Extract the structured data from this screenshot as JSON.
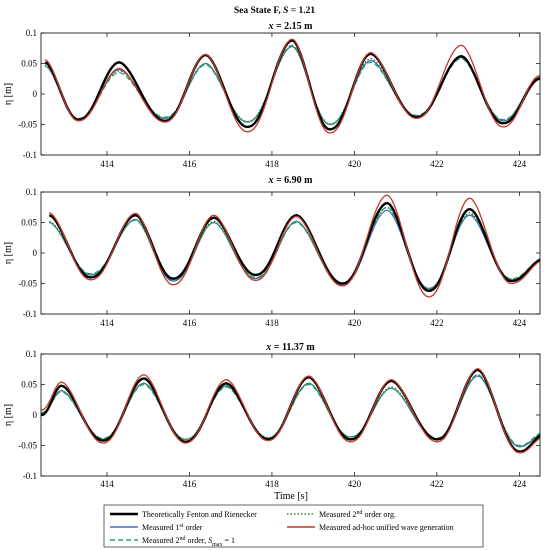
{
  "figure": {
    "title_prefix": "Sea State F, ",
    "title_var": "S",
    "title_suffix": " = 1.21",
    "x_axis_label": "Time [s]",
    "y_axis_label": "η [m]",
    "legend": {
      "fenton": "Theoretically Fenton and Rienecker",
      "first_order_pre": "Measured 1",
      "first_order_sup": "st",
      "first_order_post": " order",
      "second_smax_pre": "Measured 2",
      "second_smax_sup": "nd",
      "second_smax_mid": " order, ",
      "second_smax_var": "S",
      "second_smax_sub": "max",
      "second_smax_post": " = 1",
      "second_org_pre": "Measured 2",
      "second_org_sup": "nd",
      "second_org_post": " order org.",
      "adhoc": "Measured ad-hoc unified wave generation"
    }
  },
  "colors": {
    "fenton": "#000000",
    "first_order": "#4472c4",
    "second_smax": "#2e9e6e",
    "second_org": "#2e8b2e",
    "adhoc": "#c0392b"
  },
  "chart_data": [
    {
      "type": "line",
      "title_var": "x",
      "title_value": " = 2.15 m",
      "xlim": [
        412.4,
        424.5
      ],
      "ylim": [
        -0.1,
        0.1
      ],
      "xticks": [
        414,
        416,
        418,
        420,
        422,
        424
      ],
      "yticks": [
        -0.1,
        -0.05,
        0,
        0.05,
        0.1
      ],
      "ytick_labels": [
        "-0.1",
        "-0.05",
        "0",
        "0.05",
        "0.1"
      ],
      "series": [
        {
          "key": "fenton",
          "crests": [
            [
              412.5,
              0.052
            ],
            [
              414.3,
              0.052
            ],
            [
              416.4,
              0.064
            ],
            [
              418.5,
              0.088
            ],
            [
              420.4,
              0.066
            ],
            [
              422.6,
              0.062
            ],
            [
              424.5,
              0.025
            ]
          ],
          "troughs": [
            [
              413.3,
              -0.042
            ],
            [
              415.4,
              -0.044
            ],
            [
              417.4,
              -0.054
            ],
            [
              419.4,
              -0.058
            ],
            [
              421.5,
              -0.038
            ],
            [
              423.6,
              -0.048
            ]
          ]
        },
        {
          "key": "first_order",
          "crests": [
            [
              412.5,
              0.046
            ],
            [
              414.3,
              0.04
            ],
            [
              416.4,
              0.05
            ],
            [
              418.5,
              0.078
            ],
            [
              420.4,
              0.055
            ],
            [
              422.6,
              0.06
            ],
            [
              424.5,
              0.028
            ]
          ],
          "troughs": [
            [
              413.3,
              -0.042
            ],
            [
              415.4,
              -0.04
            ],
            [
              417.4,
              -0.046
            ],
            [
              419.4,
              -0.05
            ],
            [
              421.5,
              -0.037
            ],
            [
              423.6,
              -0.044
            ]
          ]
        },
        {
          "key": "second_smax",
          "crests": [
            [
              412.5,
              0.046
            ],
            [
              414.3,
              0.035
            ],
            [
              416.4,
              0.048
            ],
            [
              418.5,
              0.08
            ],
            [
              420.4,
              0.052
            ],
            [
              422.6,
              0.058
            ],
            [
              424.5,
              0.026
            ]
          ],
          "troughs": [
            [
              413.3,
              -0.04
            ],
            [
              415.4,
              -0.038
            ],
            [
              417.4,
              -0.046
            ],
            [
              419.4,
              -0.05
            ],
            [
              421.5,
              -0.035
            ],
            [
              423.6,
              -0.042
            ]
          ]
        },
        {
          "key": "second_org",
          "crests": [
            [
              412.5,
              0.048
            ],
            [
              414.3,
              0.038
            ],
            [
              416.4,
              0.05
            ],
            [
              418.5,
              0.078
            ],
            [
              420.4,
              0.058
            ],
            [
              422.6,
              0.06
            ],
            [
              424.5,
              0.027
            ]
          ],
          "troughs": [
            [
              413.3,
              -0.041
            ],
            [
              415.4,
              -0.039
            ],
            [
              417.4,
              -0.045
            ],
            [
              419.4,
              -0.049
            ],
            [
              421.5,
              -0.036
            ],
            [
              423.6,
              -0.043
            ]
          ]
        },
        {
          "key": "adhoc",
          "crests": [
            [
              412.5,
              0.056
            ],
            [
              414.3,
              0.042
            ],
            [
              416.4,
              0.065
            ],
            [
              418.5,
              0.09
            ],
            [
              420.4,
              0.068
            ],
            [
              422.6,
              0.08
            ],
            [
              424.5,
              0.03
            ]
          ],
          "troughs": [
            [
              413.3,
              -0.044
            ],
            [
              415.4,
              -0.046
            ],
            [
              417.4,
              -0.062
            ],
            [
              419.4,
              -0.064
            ],
            [
              421.5,
              -0.04
            ],
            [
              423.6,
              -0.054
            ]
          ]
        }
      ]
    },
    {
      "type": "line",
      "title_var": "x",
      "title_value": " = 6.90 m",
      "xlim": [
        412.4,
        424.5
      ],
      "ylim": [
        -0.1,
        0.1
      ],
      "xticks": [
        414,
        416,
        418,
        420,
        422,
        424
      ],
      "yticks": [
        -0.1,
        -0.05,
        0,
        0.05,
        0.1
      ],
      "ytick_labels": [
        "-0.1",
        "-0.05",
        "0",
        "0.05",
        "0.1"
      ],
      "series": [
        {
          "key": "fenton",
          "crests": [
            [
              412.6,
              0.062
            ],
            [
              414.7,
              0.062
            ],
            [
              416.6,
              0.058
            ],
            [
              418.6,
              0.062
            ],
            [
              420.8,
              0.082
            ],
            [
              422.8,
              0.072
            ]
          ],
          "troughs": [
            [
              413.6,
              -0.04
            ],
            [
              415.6,
              -0.042
            ],
            [
              417.6,
              -0.036
            ],
            [
              419.7,
              -0.05
            ],
            [
              421.8,
              -0.062
            ],
            [
              423.8,
              -0.046
            ],
            [
              424.6,
              -0.01
            ]
          ]
        },
        {
          "key": "first_order",
          "crests": [
            [
              412.6,
              0.05
            ],
            [
              414.7,
              0.055
            ],
            [
              416.6,
              0.05
            ],
            [
              418.6,
              0.052
            ],
            [
              420.8,
              0.07
            ],
            [
              422.8,
              0.062
            ]
          ],
          "troughs": [
            [
              413.6,
              -0.036
            ],
            [
              415.6,
              -0.046
            ],
            [
              417.6,
              -0.042
            ],
            [
              419.7,
              -0.052
            ],
            [
              421.8,
              -0.058
            ],
            [
              423.8,
              -0.044
            ],
            [
              424.6,
              -0.008
            ]
          ]
        },
        {
          "key": "second_smax",
          "crests": [
            [
              412.6,
              0.05
            ],
            [
              414.7,
              0.054
            ],
            [
              416.6,
              0.05
            ],
            [
              418.6,
              0.05
            ],
            [
              420.8,
              0.075
            ],
            [
              422.8,
              0.064
            ]
          ],
          "troughs": [
            [
              413.6,
              -0.034
            ],
            [
              415.6,
              -0.044
            ],
            [
              417.6,
              -0.04
            ],
            [
              419.7,
              -0.05
            ],
            [
              421.8,
              -0.06
            ],
            [
              423.8,
              -0.042
            ],
            [
              424.6,
              -0.008
            ]
          ]
        },
        {
          "key": "second_org",
          "crests": [
            [
              412.6,
              0.052
            ],
            [
              414.7,
              0.055
            ],
            [
              416.6,
              0.052
            ],
            [
              418.6,
              0.052
            ],
            [
              420.8,
              0.075
            ],
            [
              422.8,
              0.066
            ]
          ],
          "troughs": [
            [
              413.6,
              -0.035
            ],
            [
              415.6,
              -0.044
            ],
            [
              417.6,
              -0.041
            ],
            [
              419.7,
              -0.051
            ],
            [
              421.8,
              -0.059
            ],
            [
              423.8,
              -0.043
            ],
            [
              424.6,
              -0.009
            ]
          ]
        },
        {
          "key": "adhoc",
          "crests": [
            [
              412.6,
              0.066
            ],
            [
              414.7,
              0.065
            ],
            [
              416.6,
              0.062
            ],
            [
              418.6,
              0.06
            ],
            [
              420.8,
              0.095
            ],
            [
              422.8,
              0.09
            ]
          ],
          "troughs": [
            [
              413.6,
              -0.044
            ],
            [
              415.6,
              -0.052
            ],
            [
              417.6,
              -0.045
            ],
            [
              419.7,
              -0.054
            ],
            [
              421.8,
              -0.072
            ],
            [
              423.8,
              -0.05
            ],
            [
              424.6,
              -0.012
            ]
          ]
        }
      ]
    },
    {
      "type": "line",
      "title_var": "x",
      "title_value": " = 11.37 m",
      "xlim": [
        412.4,
        424.5
      ],
      "ylim": [
        -0.1,
        0.1
      ],
      "xticks": [
        414,
        416,
        418,
        420,
        422,
        424
      ],
      "yticks": [
        -0.1,
        -0.05,
        0,
        0.05,
        0.1
      ],
      "ytick_labels": [
        "-0.1",
        "-0.05",
        "0",
        "0.05",
        "0.1"
      ],
      "series": [
        {
          "key": "fenton",
          "crests": [
            [
              412.9,
              0.048
            ],
            [
              414.9,
              0.06
            ],
            [
              416.9,
              0.052
            ],
            [
              418.9,
              0.062
            ],
            [
              420.9,
              0.056
            ],
            [
              423.0,
              0.074
            ]
          ],
          "troughs": [
            [
              412.4,
              0.0
            ],
            [
              413.9,
              -0.042
            ],
            [
              415.9,
              -0.044
            ],
            [
              417.9,
              -0.04
            ],
            [
              419.9,
              -0.04
            ],
            [
              422.0,
              -0.04
            ],
            [
              424.0,
              -0.06
            ],
            [
              424.6,
              -0.032
            ]
          ]
        },
        {
          "key": "first_order",
          "crests": [
            [
              412.9,
              0.04
            ],
            [
              414.9,
              0.052
            ],
            [
              416.9,
              0.048
            ],
            [
              418.9,
              0.052
            ],
            [
              420.9,
              0.044
            ],
            [
              423.0,
              0.064
            ]
          ],
          "troughs": [
            [
              412.4,
              0.002
            ],
            [
              413.9,
              -0.04
            ],
            [
              415.9,
              -0.04
            ],
            [
              417.9,
              -0.038
            ],
            [
              419.9,
              -0.036
            ],
            [
              422.0,
              -0.04
            ],
            [
              424.0,
              -0.052
            ],
            [
              424.6,
              -0.03
            ]
          ]
        },
        {
          "key": "second_smax",
          "crests": [
            [
              412.9,
              0.038
            ],
            [
              414.9,
              0.05
            ],
            [
              416.9,
              0.046
            ],
            [
              418.9,
              0.05
            ],
            [
              420.9,
              0.044
            ],
            [
              423.0,
              0.066
            ]
          ],
          "troughs": [
            [
              412.4,
              0.004
            ],
            [
              413.9,
              -0.038
            ],
            [
              415.9,
              -0.04
            ],
            [
              417.9,
              -0.038
            ],
            [
              419.9,
              -0.036
            ],
            [
              422.0,
              -0.038
            ],
            [
              424.0,
              -0.05
            ],
            [
              424.6,
              -0.028
            ]
          ]
        },
        {
          "key": "second_org",
          "crests": [
            [
              412.9,
              0.04
            ],
            [
              414.9,
              0.052
            ],
            [
              416.9,
              0.048
            ],
            [
              418.9,
              0.052
            ],
            [
              420.9,
              0.046
            ],
            [
              423.0,
              0.066
            ]
          ],
          "troughs": [
            [
              412.4,
              0.003
            ],
            [
              413.9,
              -0.039
            ],
            [
              415.9,
              -0.04
            ],
            [
              417.9,
              -0.037
            ],
            [
              419.9,
              -0.036
            ],
            [
              422.0,
              -0.039
            ],
            [
              424.0,
              -0.051
            ],
            [
              424.6,
              -0.029
            ]
          ]
        },
        {
          "key": "adhoc",
          "crests": [
            [
              412.9,
              0.054
            ],
            [
              414.9,
              0.066
            ],
            [
              416.9,
              0.058
            ],
            [
              418.9,
              0.064
            ],
            [
              420.9,
              0.058
            ],
            [
              423.0,
              0.076
            ]
          ],
          "troughs": [
            [
              412.4,
              0.008
            ],
            [
              413.9,
              -0.046
            ],
            [
              415.9,
              -0.046
            ],
            [
              417.9,
              -0.042
            ],
            [
              419.9,
              -0.044
            ],
            [
              422.0,
              -0.044
            ],
            [
              424.0,
              -0.062
            ],
            [
              424.6,
              -0.036
            ]
          ]
        }
      ]
    }
  ]
}
